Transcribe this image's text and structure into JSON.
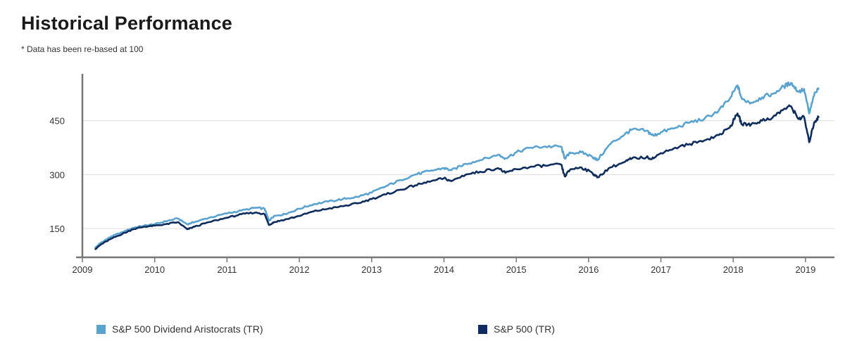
{
  "page": {
    "title": "Historical Performance",
    "subtitle": "* Data has been re-based at 100"
  },
  "chart_data": {
    "type": "line",
    "title": "Historical Performance",
    "subtitle": "* Data has been re-based at 100",
    "xlabel": "",
    "ylabel": "",
    "xlim": [
      2009.0,
      2019.4
    ],
    "ylim": [
      70,
      590
    ],
    "x_ticks": [
      2009,
      2010,
      2011,
      2012,
      2013,
      2014,
      2015,
      2016,
      2017,
      2018,
      2019
    ],
    "x_tick_labels": [
      "2009",
      "2010",
      "2011",
      "2012",
      "2013",
      "2014",
      "2015",
      "2016",
      "2017",
      "2018",
      "2019"
    ],
    "y_ticks": [
      150,
      300,
      450
    ],
    "y_tick_labels": [
      "150",
      "300",
      "450"
    ],
    "grid": "horizontal",
    "legend_position": "bottom",
    "series": [
      {
        "name": "S&P 500 Dividend Aristocrats (TR)",
        "color": "#5BA3CF",
        "x": [
          2009.18,
          2009.25,
          2009.4,
          2009.55,
          2009.7,
          2009.85,
          2010.0,
          2010.15,
          2010.32,
          2010.45,
          2010.55,
          2010.75,
          2011.0,
          2011.2,
          2011.4,
          2011.52,
          2011.58,
          2011.65,
          2011.8,
          2012.0,
          2012.2,
          2012.4,
          2012.6,
          2012.8,
          2013.0,
          2013.2,
          2013.4,
          2013.6,
          2013.8,
          2014.0,
          2014.1,
          2014.3,
          2014.5,
          2014.75,
          2014.85,
          2015.0,
          2015.2,
          2015.4,
          2015.62,
          2015.67,
          2015.75,
          2015.9,
          2016.05,
          2016.12,
          2016.3,
          2016.5,
          2016.6,
          2016.8,
          2016.9,
          2017.0,
          2017.2,
          2017.4,
          2017.6,
          2017.8,
          2017.95,
          2018.06,
          2018.12,
          2018.25,
          2018.4,
          2018.55,
          2018.7,
          2018.8,
          2018.9,
          2018.98,
          2019.05,
          2019.12,
          2019.18
        ],
        "values": [
          97,
          110,
          128,
          140,
          152,
          158,
          162,
          170,
          178,
          162,
          168,
          180,
          192,
          200,
          208,
          205,
          172,
          185,
          190,
          205,
          218,
          225,
          232,
          238,
          250,
          268,
          285,
          300,
          310,
          318,
          312,
          330,
          340,
          355,
          345,
          362,
          375,
          378,
          378,
          345,
          360,
          362,
          350,
          340,
          385,
          412,
          425,
          422,
          408,
          418,
          430,
          445,
          455,
          478,
          510,
          548,
          510,
          500,
          515,
          525,
          545,
          555,
          530,
          538,
          470,
          520,
          540
        ]
      },
      {
        "name": "S&P 500 (TR)",
        "color": "#0F2D5C",
        "x": [
          2009.18,
          2009.25,
          2009.4,
          2009.55,
          2009.7,
          2009.85,
          2010.0,
          2010.15,
          2010.32,
          2010.45,
          2010.55,
          2010.75,
          2011.0,
          2011.2,
          2011.4,
          2011.52,
          2011.58,
          2011.65,
          2011.8,
          2012.0,
          2012.2,
          2012.4,
          2012.6,
          2012.8,
          2013.0,
          2013.2,
          2013.4,
          2013.6,
          2013.8,
          2014.0,
          2014.1,
          2014.3,
          2014.5,
          2014.75,
          2014.85,
          2015.0,
          2015.2,
          2015.4,
          2015.62,
          2015.67,
          2015.75,
          2015.9,
          2016.05,
          2016.12,
          2016.3,
          2016.5,
          2016.6,
          2016.8,
          2016.9,
          2017.0,
          2017.2,
          2017.4,
          2017.6,
          2017.8,
          2017.95,
          2018.06,
          2018.12,
          2018.25,
          2018.4,
          2018.55,
          2018.7,
          2018.8,
          2018.9,
          2018.98,
          2019.05,
          2019.12,
          2019.18
        ],
        "values": [
          93,
          105,
          122,
          135,
          148,
          155,
          158,
          162,
          168,
          148,
          155,
          168,
          180,
          190,
          195,
          190,
          160,
          168,
          175,
          185,
          198,
          205,
          212,
          220,
          232,
          245,
          258,
          270,
          280,
          290,
          282,
          300,
          308,
          318,
          305,
          315,
          322,
          325,
          328,
          295,
          315,
          320,
          305,
          292,
          320,
          335,
          345,
          348,
          345,
          360,
          375,
          385,
          395,
          410,
          430,
          470,
          440,
          440,
          450,
          460,
          482,
          490,
          455,
          460,
          390,
          445,
          460
        ]
      }
    ]
  }
}
